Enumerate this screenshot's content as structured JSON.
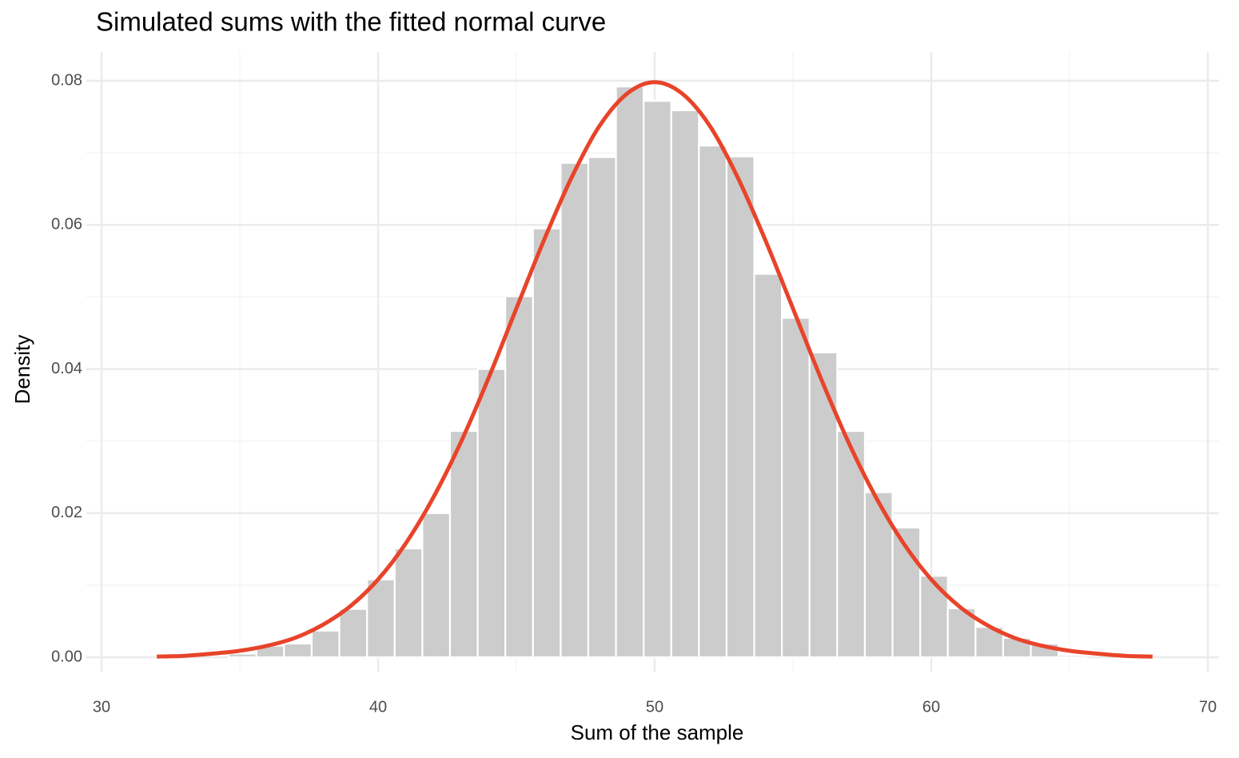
{
  "chart_data": {
    "type": "histogram",
    "title": "Simulated sums with the fitted normal curve",
    "x_label": "Sum of the sample",
    "y_label": "Density",
    "bins": [
      34.6,
      35.6,
      36.6,
      37.6,
      38.6,
      39.6,
      40.6,
      41.6,
      42.6,
      43.6,
      44.6,
      45.6,
      46.6,
      47.6,
      48.6,
      49.6,
      50.6,
      51.6,
      52.6,
      53.6,
      54.6,
      55.6,
      56.6,
      57.6,
      58.6,
      59.6,
      60.6,
      61.6,
      62.6,
      63.6,
      64.6,
      65.6
    ],
    "values": [
      0.0005,
      0.0016,
      0.0019,
      0.0037,
      0.0067,
      0.0108,
      0.0151,
      0.02,
      0.0314,
      0.04,
      0.0501,
      0.0595,
      0.0686,
      0.0694,
      0.0792,
      0.0772,
      0.0759,
      0.071,
      0.0695,
      0.0532,
      0.0471,
      0.0423,
      0.0314,
      0.0229,
      0.018,
      0.0113,
      0.0068,
      0.0042,
      0.0027,
      0.0019,
      0.0003
    ],
    "color": "#cccccc",
    "curve": {
      "color": "#e8442a",
      "x": [
        32,
        33,
        34,
        35,
        36,
        37,
        38,
        39,
        40,
        41,
        42,
        43,
        44,
        45,
        46,
        47,
        48,
        49,
        50,
        51,
        52,
        53,
        54,
        55,
        56,
        57,
        58,
        59,
        60,
        61,
        62,
        63,
        64,
        65,
        66,
        67,
        68
      ],
      "values": [
        0.0001,
        0.0002,
        0.0005,
        0.0009,
        0.0016,
        0.0027,
        0.0045,
        0.0071,
        0.0108,
        0.0158,
        0.0222,
        0.0299,
        0.0388,
        0.0484,
        0.0579,
        0.0666,
        0.0737,
        0.0782,
        0.0798,
        0.0782,
        0.0737,
        0.0666,
        0.0579,
        0.0484,
        0.0388,
        0.0299,
        0.0222,
        0.0158,
        0.0108,
        0.0071,
        0.0045,
        0.0027,
        0.0016,
        0.0009,
        0.0005,
        0.0002,
        0.0001
      ]
    },
    "xlim": [
      30,
      70
    ],
    "xticks": [
      30,
      40,
      50,
      60,
      70
    ],
    "ylim": [
      0,
      0.08
    ],
    "yticks": [
      {
        "value": 0,
        "label": "0.00"
      },
      {
        "value": 0.02,
        "label": "0.02"
      },
      {
        "value": 0.04,
        "label": "0.04"
      },
      {
        "value": 0.06,
        "label": "0.06"
      },
      {
        "value": 0.08,
        "label": "0.08"
      }
    ],
    "grid": true
  }
}
